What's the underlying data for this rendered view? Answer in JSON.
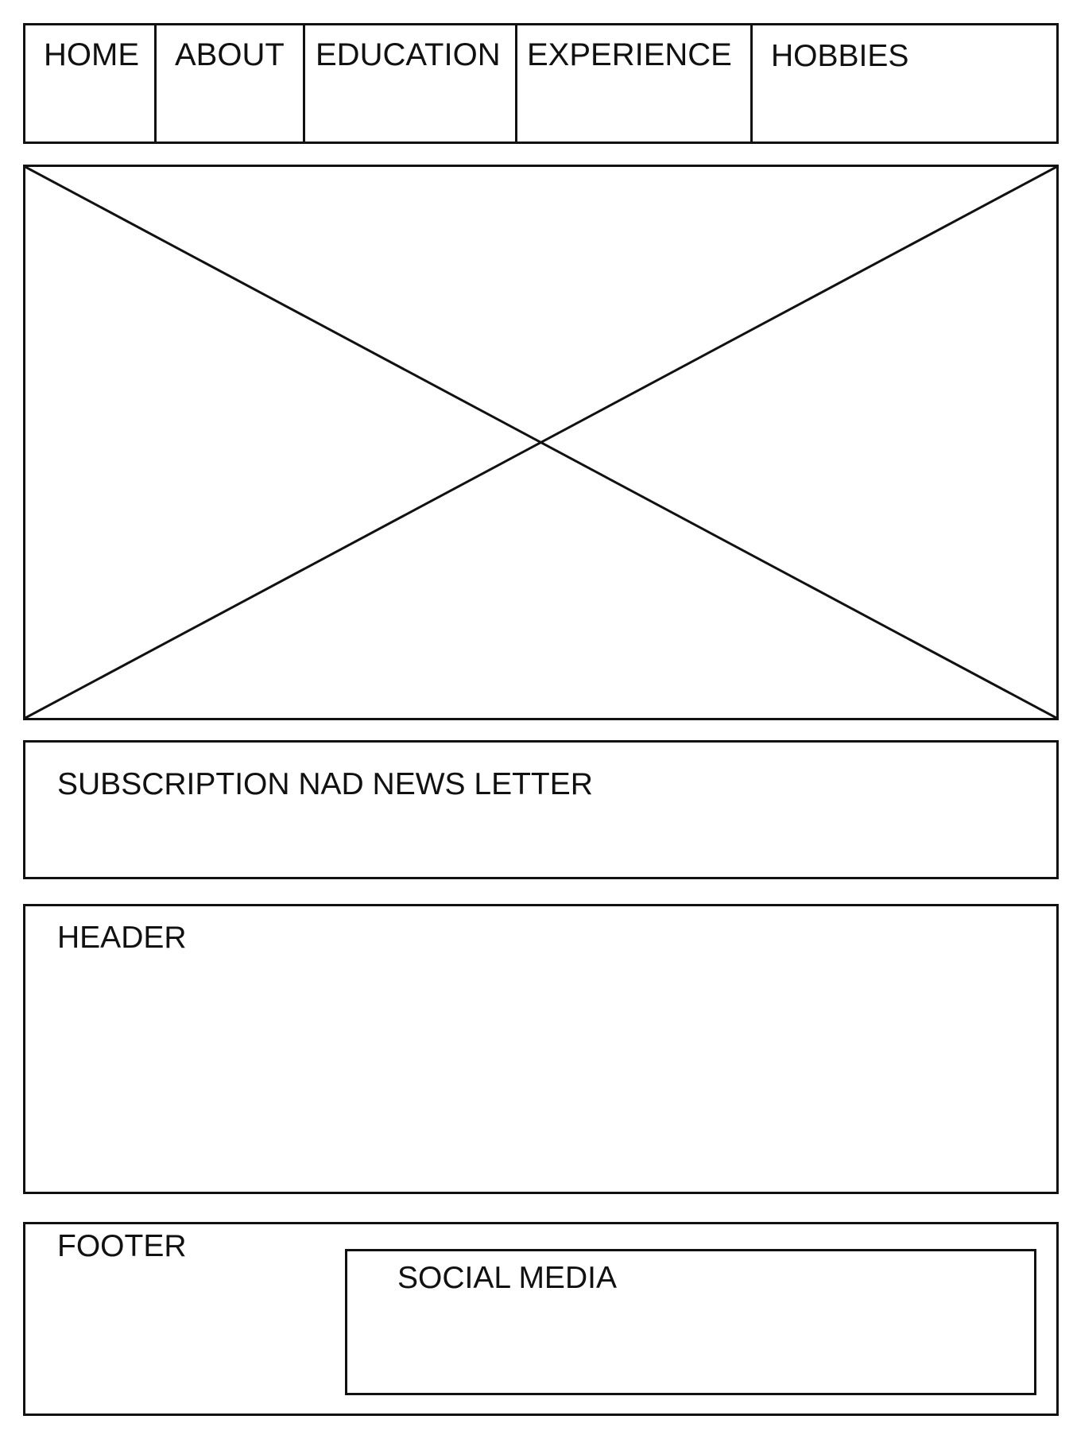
{
  "nav": {
    "items": [
      {
        "label": "HOME"
      },
      {
        "label": "ABOUT"
      },
      {
        "label": "EDUCATION"
      },
      {
        "label": "EXPERIENCE"
      },
      {
        "label": "HOBBIES"
      }
    ]
  },
  "hero": {
    "icon": "image-placeholder-icon"
  },
  "subscription": {
    "label": "SUBSCRIPTION NAD NEWS LETTER"
  },
  "header_section": {
    "label": "HEADER"
  },
  "footer": {
    "label": "FOOTER",
    "social_media": {
      "label": "SOCIAL MEDIA"
    }
  }
}
